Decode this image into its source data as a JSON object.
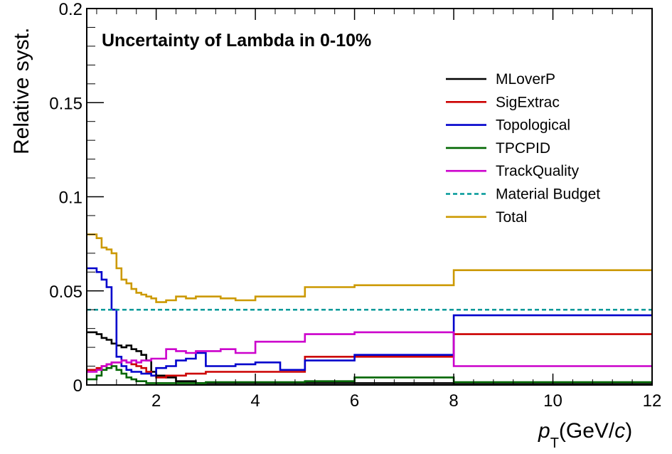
{
  "chart_data": {
    "type": "line",
    "step": true,
    "title": "Uncertainty of Lambda in 0-10%",
    "xlabel_main": "p",
    "xlabel_sub": "T",
    "xlabel_unit_open": "(GeV/",
    "xlabel_unit_var": "c",
    "xlabel_unit_close": ")",
    "ylabel": "Relative syst.",
    "xlim": [
      0.6,
      12
    ],
    "ylim": [
      0,
      0.2
    ],
    "x_ticks": [
      2,
      4,
      6,
      8,
      10,
      12
    ],
    "x_tick_labels": [
      "2",
      "4",
      "6",
      "8",
      "10",
      "12"
    ],
    "y_ticks": [
      0,
      0.05,
      0.1,
      0.15,
      0.2
    ],
    "y_tick_labels": [
      "0",
      "0.05",
      "0.1",
      "0.15",
      "0.2"
    ],
    "legend_position": "top-right",
    "bin_edges": [
      0.6,
      0.8,
      0.9,
      1.0,
      1.1,
      1.2,
      1.3,
      1.4,
      1.5,
      1.6,
      1.7,
      1.8,
      1.9,
      2.0,
      2.2,
      2.4,
      2.6,
      2.8,
      3.0,
      3.3,
      3.6,
      4.0,
      4.5,
      5.0,
      6.0,
      8.0,
      12.0
    ],
    "series": [
      {
        "name": "MLoverP",
        "color": "#000000",
        "dashed": false,
        "values": [
          0.028,
          0.027,
          0.025,
          0.024,
          0.022,
          0.021,
          0.02,
          0.021,
          0.019,
          0.018,
          0.016,
          0.013,
          0.007,
          0.005,
          0.004,
          0.002,
          0.002,
          0.001,
          0.001,
          0.001,
          0.001,
          0.001,
          0.001,
          0.001,
          0.001,
          0.0005
        ]
      },
      {
        "name": "SigExtrac",
        "color": "#cc0000",
        "dashed": false,
        "values": [
          0.008,
          0.009,
          0.01,
          0.011,
          0.012,
          0.012,
          0.013,
          0.012,
          0.011,
          0.01,
          0.009,
          0.007,
          0.005,
          0.004,
          0.005,
          0.005,
          0.006,
          0.006,
          0.007,
          0.007,
          0.007,
          0.007,
          0.007,
          0.015,
          0.015,
          0.027
        ]
      },
      {
        "name": "Topological",
        "color": "#0000cc",
        "dashed": false,
        "values": [
          0.062,
          0.06,
          0.056,
          0.052,
          0.04,
          0.015,
          0.01,
          0.008,
          0.007,
          0.007,
          0.006,
          0.006,
          0.005,
          0.009,
          0.01,
          0.013,
          0.014,
          0.017,
          0.01,
          0.01,
          0.011,
          0.012,
          0.008,
          0.013,
          0.016,
          0.037
        ]
      },
      {
        "name": "TPCPID",
        "color": "#006600",
        "dashed": false,
        "values": [
          0.003,
          0.005,
          0.008,
          0.009,
          0.01,
          0.008,
          0.006,
          0.004,
          0.003,
          0.002,
          0.002,
          0.001,
          0.001,
          0.001,
          0.001,
          0.001,
          0.001,
          0.001,
          0.0015,
          0.0015,
          0.0015,
          0.0015,
          0.0015,
          0.002,
          0.004,
          0.0015
        ]
      },
      {
        "name": "TrackQuality",
        "color": "#cc00cc",
        "dashed": false,
        "values": [
          0.007,
          0.008,
          0.01,
          0.011,
          0.012,
          0.012,
          0.013,
          0.012,
          0.013,
          0.012,
          0.013,
          0.013,
          0.014,
          0.014,
          0.019,
          0.018,
          0.017,
          0.018,
          0.018,
          0.019,
          0.017,
          0.023,
          0.023,
          0.027,
          0.028,
          0.01
        ]
      },
      {
        "name": "Material Budget",
        "color": "#009999",
        "dashed": true,
        "values": [
          0.04,
          0.04,
          0.04,
          0.04,
          0.04,
          0.04,
          0.04,
          0.04,
          0.04,
          0.04,
          0.04,
          0.04,
          0.04,
          0.04,
          0.04,
          0.04,
          0.04,
          0.04,
          0.04,
          0.04,
          0.04,
          0.04,
          0.04,
          0.04,
          0.04,
          0.04
        ]
      },
      {
        "name": "Total",
        "color": "#cc9900",
        "dashed": false,
        "values": [
          0.08,
          0.078,
          0.073,
          0.072,
          0.07,
          0.062,
          0.056,
          0.054,
          0.051,
          0.049,
          0.048,
          0.047,
          0.046,
          0.044,
          0.045,
          0.047,
          0.046,
          0.047,
          0.047,
          0.046,
          0.045,
          0.047,
          0.047,
          0.052,
          0.053,
          0.061
        ]
      }
    ]
  }
}
